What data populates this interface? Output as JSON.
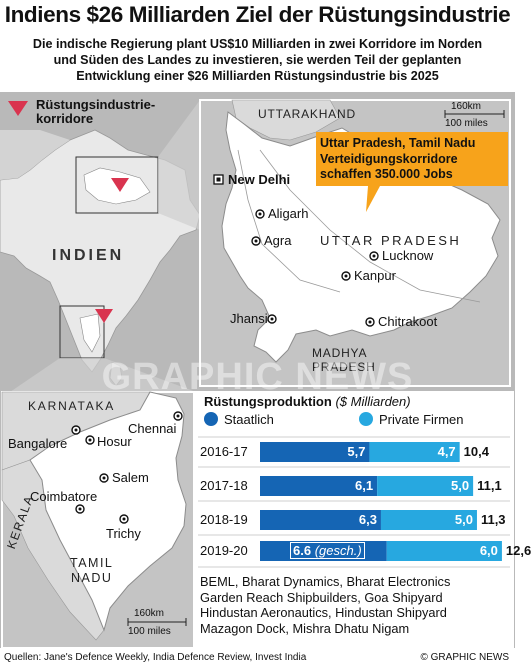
{
  "title": "Indiens $26 Milliarden Ziel der Rüstungsindustrie",
  "subtitle": {
    "line1": "Die indische Regierung plant US$10 Milliarden in zwei Korridore im Norden",
    "line2": "und Süden des Landes zu investieren, sie werden Teil der geplanten",
    "line3": "Entwicklung einer $26 Milliarden Rüstungsindustrie bis 2025"
  },
  "legend": {
    "label_line1": "Rüstungsindustrie-",
    "label_line2": "korridore",
    "color": "#d9344f"
  },
  "india_map": {
    "country_label": "INDIEN"
  },
  "north_map": {
    "state_top": "UTTARAKHAND",
    "state_main": "UTTAR PRADESH",
    "state_south_line1": "MADHYA",
    "state_south_line2": "PRADESH",
    "capital": "New Delhi",
    "cities": [
      "Aligarh",
      "Agra",
      "Lucknow",
      "Kanpur",
      "Jhansi",
      "Chitrakoot"
    ],
    "scale_km": "160km",
    "scale_miles": "100 miles",
    "callout_line1": "Uttar Pradesh, Tamil Nadu",
    "callout_line2": "Verteidigungskorridore",
    "callout_line3": "schaffen 350.000 Jobs",
    "callout_color": "#f7a31b"
  },
  "south_map": {
    "state_karnataka": "KARNATAKA",
    "state_kerala": "KERALA",
    "state_tamil_line1": "TAMIL",
    "state_tamil_line2": "NADU",
    "cities": [
      "Chennai",
      "Bangalore",
      "Hosur",
      "Salem",
      "Coimbatore",
      "Trichy"
    ],
    "scale_km": "160km",
    "scale_miles": "100 miles"
  },
  "watermark": "GRAPHIC NEWS",
  "chart_data": {
    "type": "bar",
    "title": "Rüstungsproduktion",
    "unit": "($ Milliarden)",
    "categories": [
      "2016-17",
      "2017-18",
      "2018-19",
      "2019-20"
    ],
    "series": [
      {
        "name": "Staatlich",
        "values": [
          5.7,
          6.1,
          6.3,
          6.6
        ],
        "labels": [
          "5,7",
          "6,1",
          "6,3",
          "6.6 (gesch.)"
        ],
        "color": "#1565b4"
      },
      {
        "name": "Private Firmen",
        "values": [
          4.7,
          5.0,
          5.0,
          6.0
        ],
        "labels": [
          "4,7",
          "5,0",
          "5,0",
          "6,0"
        ],
        "color": "#27a8e0"
      }
    ],
    "totals": [
      "10,4",
      "11,1",
      "11,3",
      "12,6"
    ]
  },
  "companies": {
    "line1": "BEML, Bharat Dynamics, Bharat Electronics",
    "line2": "Garden Reach Shipbuilders, Goa Shipyard",
    "line3": "Hindustan Aeronautics, Hindustan Shipyard",
    "line4": "Mazagon Dock, Mishra Dhatu Nigam"
  },
  "footer": {
    "sources": "Quellen: Jane's Defence Weekly, India Defence Review, Invest India",
    "credit": "© GRAPHIC NEWS"
  }
}
